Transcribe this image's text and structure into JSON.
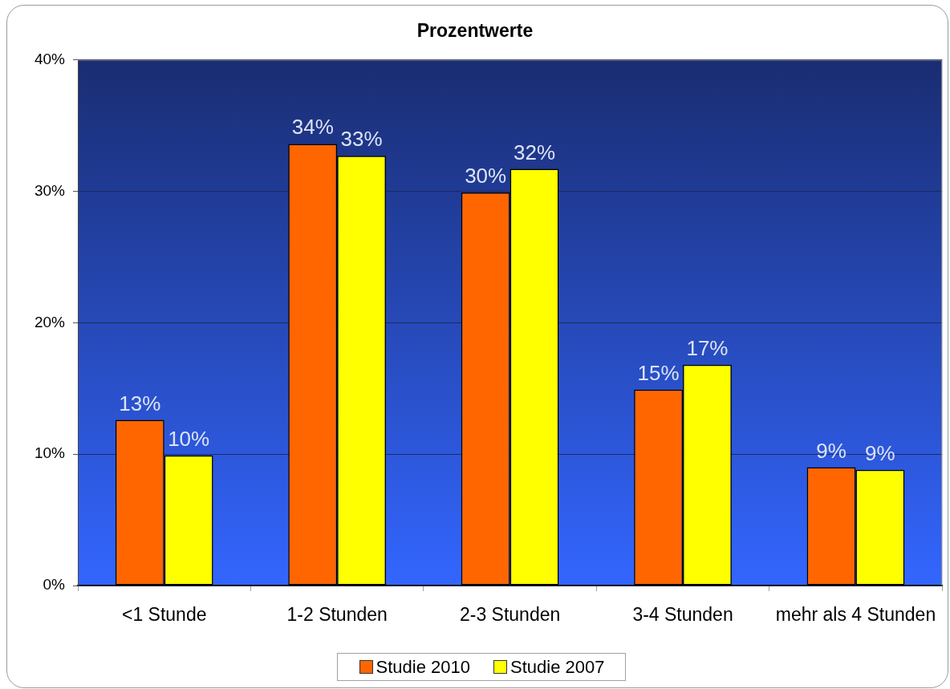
{
  "chart_data": {
    "type": "bar",
    "title": "Prozentwerte",
    "categories": [
      "<1 Stunde",
      "1-2 Stunden",
      "2-3 Stunden",
      "3-4 Stunden",
      "mehr als 4 Stunden"
    ],
    "series": [
      {
        "name": "Studie 2010",
        "color": "#ff6600",
        "values": [
          12.6,
          33.6,
          29.9,
          14.9,
          9.0
        ],
        "value_labels": [
          "13%",
          "34%",
          "30%",
          "15%",
          "9%"
        ]
      },
      {
        "name": "Studie 2007",
        "color": "#ffff00",
        "values": [
          9.9,
          32.7,
          31.7,
          16.8,
          8.8
        ],
        "value_labels": [
          "10%",
          "33%",
          "32%",
          "17%",
          "9%"
        ]
      }
    ],
    "ylim": [
      0,
      40
    ],
    "yticks": [
      {
        "value": 0,
        "label": "0%"
      },
      {
        "value": 10,
        "label": "10%"
      },
      {
        "value": 20,
        "label": "20%"
      },
      {
        "value": 30,
        "label": "30%"
      },
      {
        "value": 40,
        "label": "40%"
      }
    ],
    "grid": "y",
    "legend": "bottom"
  }
}
